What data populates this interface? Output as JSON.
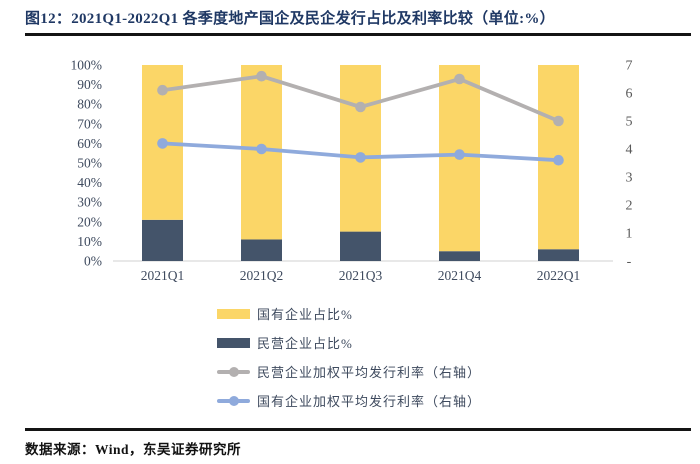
{
  "figure": {
    "title": "图12：2021Q1-2022Q1 各季度地产国企及民企发行占比及利率比较（单位:%）",
    "source": "数据来源：Wind，东吴证券研究所"
  },
  "colors": {
    "title_text": "#1F3864",
    "divider": "#141414",
    "axis_text": "#3E4A5E",
    "right_axis_text": "#595959",
    "axis_line": "#D9D9D9",
    "soe_share_bar": "#FBD667",
    "poe_share_bar": "#44546A",
    "poe_rate_line": "#B3B0B0",
    "soe_rate_line": "#8FAADC"
  },
  "chart_data": {
    "type": "combo: stacked-bar + line",
    "categories": [
      "2021Q1",
      "2021Q2",
      "2021Q3",
      "2021Q4",
      "2022Q1"
    ],
    "series": [
      {
        "name": "国有企业占比%",
        "type": "bar",
        "axis": "left",
        "color": "#FBD667",
        "values": [
          79,
          89,
          85,
          95,
          94
        ]
      },
      {
        "name": "民营企业占比%",
        "type": "bar",
        "axis": "left",
        "color": "#44546A",
        "values": [
          21,
          11,
          15,
          5,
          6
        ]
      },
      {
        "name": "民营企业加权平均发行利率（右轴）",
        "type": "line",
        "axis": "right",
        "color": "#B3B0B0",
        "values": [
          6.1,
          6.6,
          5.5,
          6.5,
          5.0
        ]
      },
      {
        "name": "国有企业加权平均发行利率（右轴）",
        "type": "line",
        "axis": "right",
        "color": "#8FAADC",
        "values": [
          4.2,
          4.0,
          3.7,
          3.8,
          3.6
        ]
      }
    ],
    "left_axis": {
      "min": 0,
      "max": 100,
      "unit": "%",
      "tick_labels_bottom_up": [
        "0%",
        "10%",
        "20%",
        "30%",
        "40%",
        "50%",
        "60%",
        "70%",
        "80%",
        "90%",
        "100%"
      ]
    },
    "right_axis": {
      "min": 0,
      "max": 7,
      "tick_labels_bottom_up": [
        "-",
        "1",
        "2",
        "3",
        "4",
        "5",
        "6",
        "7"
      ]
    },
    "bar_stack_total": 100,
    "grid": false,
    "legend_position": "bottom"
  }
}
